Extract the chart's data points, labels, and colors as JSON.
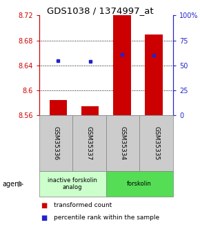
{
  "title": "GDS1038 / 1374997_at",
  "samples": [
    "GSM35336",
    "GSM35337",
    "GSM35334",
    "GSM35335"
  ],
  "red_values": [
    8.585,
    8.575,
    8.72,
    8.69
  ],
  "blue_values": [
    8.648,
    8.647,
    8.658,
    8.656
  ],
  "ylim_left": [
    8.56,
    8.72
  ],
  "yticks_left": [
    8.56,
    8.6,
    8.64,
    8.68,
    8.72
  ],
  "ytick_labels_left": [
    "8.56",
    "8.6",
    "8.64",
    "8.68",
    "8.72"
  ],
  "ylim_right": [
    0,
    100
  ],
  "yticks_right": [
    0,
    25,
    50,
    75,
    100
  ],
  "ytick_labels_right": [
    "0",
    "25",
    "50",
    "75",
    "100%"
  ],
  "groups": [
    {
      "label": "inactive forskolin\nanalog",
      "color": "#ccffcc",
      "samples": [
        0,
        1
      ]
    },
    {
      "label": "forskolin",
      "color": "#55dd55",
      "samples": [
        2,
        3
      ]
    }
  ],
  "bar_base": 8.56,
  "bar_width": 0.55,
  "axis_left_color": "#cc0000",
  "axis_right_color": "#2222cc",
  "bar_red_color": "#cc0000",
  "bar_blue_color": "#2222cc",
  "sample_box_color": "#cccccc",
  "legend_red": "transformed count",
  "legend_blue": "percentile rank within the sample"
}
